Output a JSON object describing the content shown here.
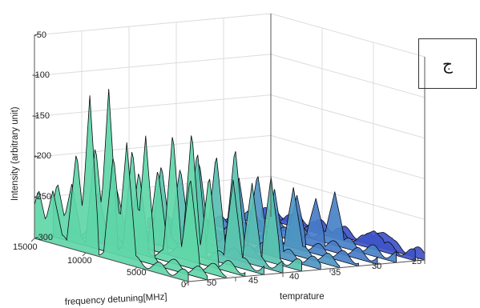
{
  "panel_label": "ج",
  "colors": {
    "low": "#3a3ec8",
    "mid": "#4a86c8",
    "high": "#5fd6a8",
    "edge": "#0a0a14",
    "grid": "#dcdcdc"
  },
  "chart_data": {
    "type": "surface",
    "title": "",
    "zlabel": "Intensity (arbitrary unit)",
    "xlabel": "frequency detuning[MHz]",
    "ylabel": "temprature",
    "zlim": [
      -300,
      -50
    ],
    "z_ticks": [
      "-50",
      "-100",
      "-150",
      "-200",
      "-250",
      "-300"
    ],
    "x_ticks": [
      "15000",
      "10000",
      "5000",
      "0"
    ],
    "y_ticks": [
      "50",
      "45",
      "40",
      "35",
      "30",
      "25"
    ],
    "xlim": [
      0,
      15000
    ],
    "ylim": [
      25,
      50
    ],
    "grid": true,
    "temperatures": [
      50,
      48,
      46,
      44,
      42,
      40,
      38,
      36,
      34,
      32,
      30,
      28,
      26,
      25
    ],
    "series": [
      {
        "temperature": 50,
        "peaks": [
          {
            "f": 14600,
            "z": -238
          },
          {
            "f": 13200,
            "z": -235
          },
          {
            "f": 10900,
            "z": -178
          },
          {
            "f": 9600,
            "z": -105
          },
          {
            "f": 7300,
            "z": -168
          },
          {
            "f": 6000,
            "z": -150
          }
        ]
      },
      {
        "temperature": 45,
        "peaks": [
          {
            "f": 12500,
            "z": -240
          },
          {
            "f": 8500,
            "z": -200
          },
          {
            "f": 5200,
            "z": -140
          },
          {
            "f": 3500,
            "z": -190
          }
        ]
      },
      {
        "temperature": 40,
        "peaks": [
          {
            "f": 10000,
            "z": -205
          },
          {
            "f": 6500,
            "z": -175
          },
          {
            "f": 3000,
            "z": -200
          }
        ]
      },
      {
        "temperature": 35,
        "peaks": [
          {
            "f": 8000,
            "z": -215
          },
          {
            "f": 4500,
            "z": -220
          }
        ]
      },
      {
        "temperature": 30,
        "peaks": [
          {
            "f": 6000,
            "z": -240
          }
        ]
      },
      {
        "temperature": 25,
        "peaks": [
          {
            "f": 4000,
            "z": -280
          }
        ]
      }
    ]
  }
}
